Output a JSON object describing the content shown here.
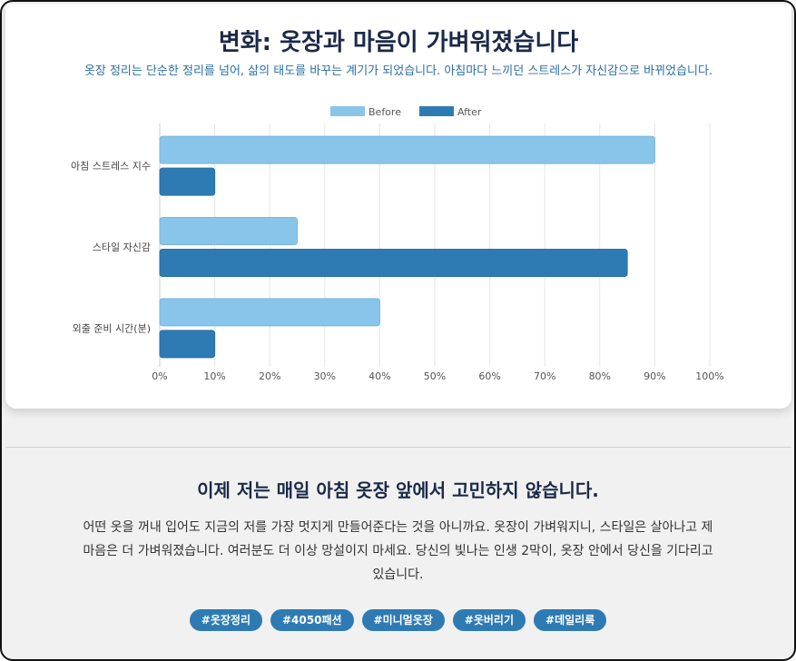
{
  "header": {
    "title": "변화: 옷장과 마음이 가벼워졌습니다",
    "subtitle": "옷장 정리는 단순한 정리를 넘어, 삶의 태도를 바꾸는 계기가 되었습니다. 아침마다 느끼던 스트레스가 자신감으로 바뀌었습니다."
  },
  "chart_data": {
    "type": "bar",
    "orientation": "horizontal",
    "categories": [
      "아침 스트레스 지수",
      "스타일 자신감",
      "외출 준비 시간(분)"
    ],
    "series": [
      {
        "name": "Before",
        "values": [
          90,
          25,
          40
        ],
        "color": "#89c4ea"
      },
      {
        "name": "After",
        "values": [
          10,
          85,
          10
        ],
        "color": "#2e7bb4"
      }
    ],
    "xlim": [
      0,
      100
    ],
    "x_ticks": [
      "0%",
      "10%",
      "20%",
      "30%",
      "40%",
      "50%",
      "60%",
      "70%",
      "80%",
      "90%",
      "100%"
    ],
    "grid": true,
    "legend_position": "top-center"
  },
  "closing": {
    "title": "이제 저는 매일 아침 옷장 앞에서 고민하지 않습니다.",
    "body": "어떤 옷을 꺼내 입어도 지금의 저를 가장 멋지게 만들어준다는 것을 아니까요. 옷장이 가벼워지니, 스타일은 살아나고 제 마음은 더 가벼워졌습니다. 여러분도 더 이상 망설이지 마세요. 당신의 빛나는 인생 2막이, 옷장 안에서 당신을 기다리고 있습니다."
  },
  "tags": [
    "#옷장정리",
    "#4050패션",
    "#미니멀옷장",
    "#옷버리기",
    "#데일리룩"
  ]
}
